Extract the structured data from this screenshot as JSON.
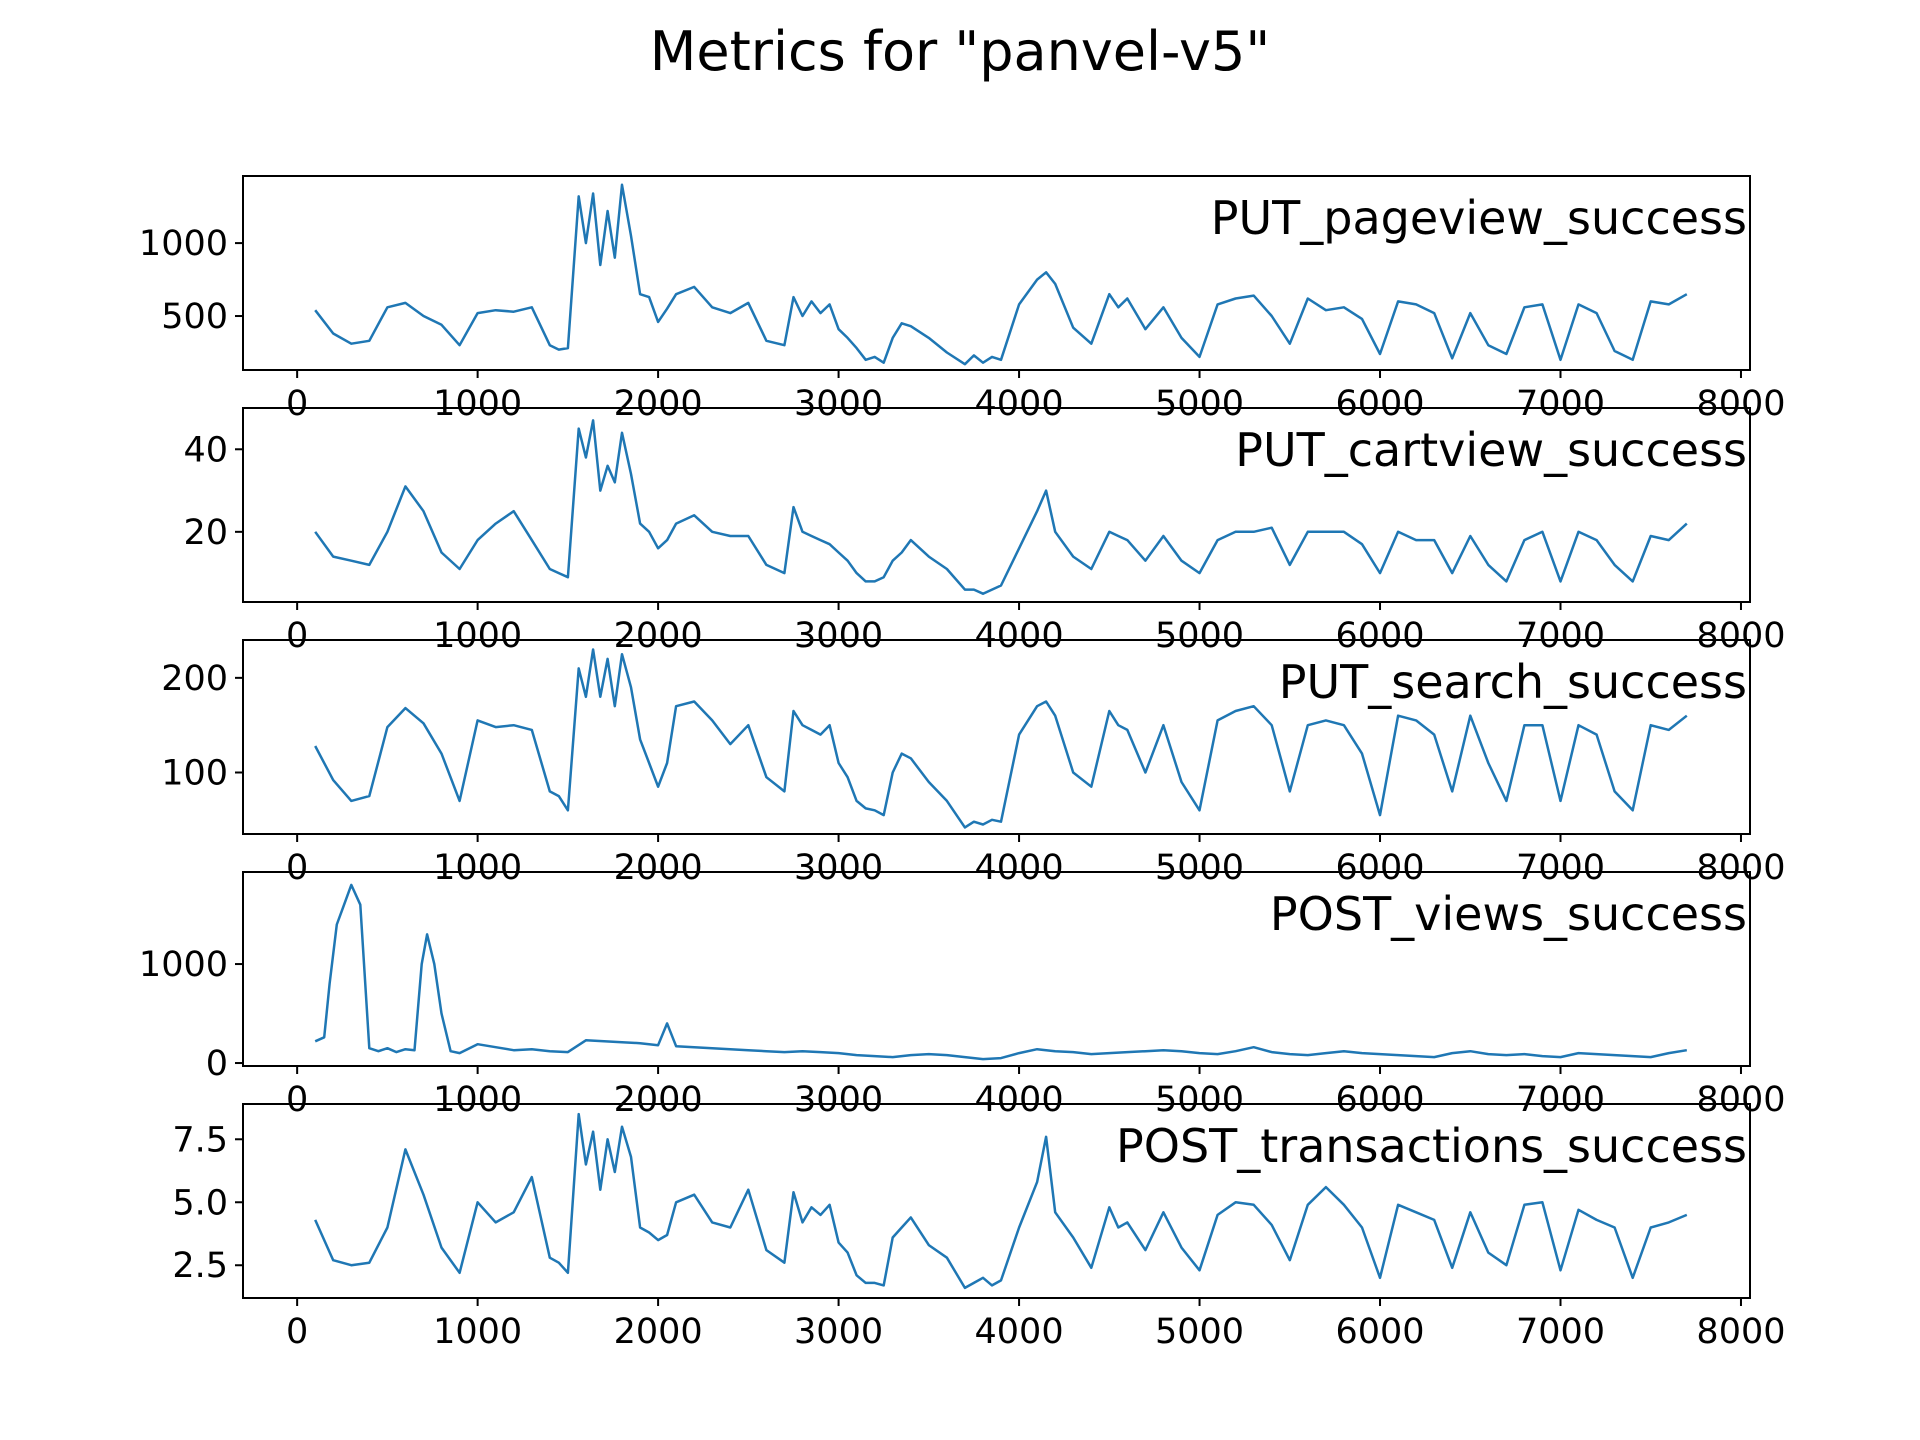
{
  "title": "Metrics for \"panvel-v5\"",
  "line_color": "#1f77b4",
  "chart_data": [
    {
      "type": "line",
      "title": "PUT_pageview_success",
      "xlim": [
        -300,
        8050
      ],
      "ylim": [
        130,
        1460
      ],
      "xticks": [
        0,
        1000,
        2000,
        3000,
        4000,
        5000,
        6000,
        7000,
        8000
      ],
      "yticks": [
        500,
        1000
      ],
      "grid": false,
      "legend": "none",
      "x": [
        100,
        200,
        300,
        400,
        500,
        600,
        700,
        800,
        900,
        1000,
        1100,
        1200,
        1300,
        1400,
        1450,
        1500,
        1560,
        1600,
        1640,
        1680,
        1720,
        1760,
        1800,
        1850,
        1900,
        1950,
        2000,
        2050,
        2100,
        2200,
        2300,
        2400,
        2500,
        2600,
        2700,
        2750,
        2800,
        2850,
        2900,
        2950,
        3000,
        3050,
        3100,
        3150,
        3200,
        3250,
        3300,
        3350,
        3400,
        3500,
        3600,
        3700,
        3750,
        3800,
        3850,
        3900,
        4000,
        4100,
        4150,
        4200,
        4300,
        4400,
        4500,
        4550,
        4600,
        4700,
        4800,
        4900,
        5000,
        5100,
        5200,
        5300,
        5400,
        5500,
        5600,
        5700,
        5800,
        5900,
        6000,
        6100,
        6200,
        6300,
        6400,
        6500,
        6600,
        6700,
        6800,
        6900,
        7000,
        7100,
        7200,
        7300,
        7400,
        7500,
        7600,
        7700
      ],
      "y": [
        540,
        380,
        310,
        330,
        560,
        590,
        500,
        440,
        300,
        520,
        540,
        530,
        560,
        300,
        270,
        280,
        1320,
        1000,
        1340,
        850,
        1220,
        900,
        1400,
        1050,
        650,
        630,
        460,
        550,
        650,
        700,
        560,
        520,
        590,
        330,
        300,
        630,
        500,
        600,
        520,
        580,
        410,
        350,
        280,
        200,
        220,
        180,
        350,
        450,
        430,
        350,
        250,
        170,
        230,
        180,
        220,
        200,
        580,
        750,
        800,
        720,
        420,
        310,
        650,
        560,
        620,
        410,
        560,
        350,
        220,
        580,
        620,
        640,
        500,
        310,
        620,
        540,
        560,
        480,
        240,
        600,
        580,
        520,
        210,
        520,
        300,
        240,
        560,
        580,
        200,
        580,
        520,
        260,
        200,
        600,
        580,
        650
      ]
    },
    {
      "type": "line",
      "title": "PUT_cartview_success",
      "xlim": [
        -300,
        8050
      ],
      "ylim": [
        3,
        50
      ],
      "xticks": [
        0,
        1000,
        2000,
        3000,
        4000,
        5000,
        6000,
        7000,
        8000
      ],
      "yticks": [
        20,
        40
      ],
      "grid": false,
      "legend": "none",
      "x": [
        100,
        200,
        300,
        400,
        500,
        600,
        700,
        800,
        900,
        1000,
        1100,
        1200,
        1300,
        1400,
        1450,
        1500,
        1560,
        1600,
        1640,
        1680,
        1720,
        1760,
        1800,
        1850,
        1900,
        1950,
        2000,
        2050,
        2100,
        2200,
        2300,
        2400,
        2500,
        2600,
        2700,
        2750,
        2800,
        2850,
        2900,
        2950,
        3000,
        3050,
        3100,
        3150,
        3200,
        3250,
        3300,
        3350,
        3400,
        3500,
        3600,
        3700,
        3750,
        3800,
        3850,
        3900,
        4000,
        4100,
        4150,
        4200,
        4300,
        4400,
        4500,
        4550,
        4600,
        4700,
        4800,
        4900,
        5000,
        5100,
        5200,
        5300,
        5400,
        5500,
        5600,
        5700,
        5800,
        5900,
        6000,
        6100,
        6200,
        6300,
        6400,
        6500,
        6600,
        6700,
        6800,
        6900,
        7000,
        7100,
        7200,
        7300,
        7400,
        7500,
        7600,
        7700
      ],
      "y": [
        20,
        14,
        13,
        12,
        20,
        31,
        25,
        15,
        11,
        18,
        22,
        25,
        18,
        11,
        10,
        9,
        45,
        38,
        47,
        30,
        36,
        32,
        44,
        34,
        22,
        20,
        16,
        18,
        22,
        24,
        20,
        19,
        19,
        12,
        10,
        26,
        20,
        19,
        18,
        17,
        15,
        13,
        10,
        8,
        8,
        9,
        13,
        15,
        18,
        14,
        11,
        6,
        6,
        5,
        6,
        7,
        16,
        25,
        30,
        20,
        14,
        11,
        20,
        19,
        18,
        13,
        19,
        13,
        10,
        18,
        20,
        20,
        21,
        12,
        20,
        20,
        20,
        17,
        10,
        20,
        18,
        18,
        10,
        19,
        12,
        8,
        18,
        20,
        8,
        20,
        18,
        12,
        8,
        19,
        18,
        22
      ]
    },
    {
      "type": "line",
      "title": "PUT_search_success",
      "xlim": [
        -300,
        8050
      ],
      "ylim": [
        35,
        240
      ],
      "xticks": [
        0,
        1000,
        2000,
        3000,
        4000,
        5000,
        6000,
        7000,
        8000
      ],
      "yticks": [
        100,
        200
      ],
      "grid": false,
      "legend": "none",
      "x": [
        100,
        200,
        300,
        400,
        500,
        600,
        700,
        800,
        900,
        1000,
        1100,
        1200,
        1300,
        1400,
        1450,
        1500,
        1560,
        1600,
        1640,
        1680,
        1720,
        1760,
        1800,
        1850,
        1900,
        1950,
        2000,
        2050,
        2100,
        2200,
        2300,
        2400,
        2500,
        2600,
        2700,
        2750,
        2800,
        2850,
        2900,
        2950,
        3000,
        3050,
        3100,
        3150,
        3200,
        3250,
        3300,
        3350,
        3400,
        3500,
        3600,
        3700,
        3750,
        3800,
        3850,
        3900,
        4000,
        4100,
        4150,
        4200,
        4300,
        4400,
        4500,
        4550,
        4600,
        4700,
        4800,
        4900,
        5000,
        5100,
        5200,
        5300,
        5400,
        5500,
        5600,
        5700,
        5800,
        5900,
        6000,
        6100,
        6200,
        6300,
        6400,
        6500,
        6600,
        6700,
        6800,
        6900,
        7000,
        7100,
        7200,
        7300,
        7400,
        7500,
        7600,
        7700
      ],
      "y": [
        128,
        92,
        70,
        75,
        148,
        168,
        152,
        120,
        70,
        155,
        148,
        150,
        145,
        80,
        75,
        60,
        210,
        180,
        230,
        180,
        220,
        170,
        225,
        190,
        135,
        110,
        85,
        110,
        170,
        175,
        155,
        130,
        150,
        95,
        80,
        165,
        150,
        145,
        140,
        150,
        110,
        95,
        70,
        62,
        60,
        55,
        100,
        120,
        115,
        90,
        70,
        42,
        48,
        45,
        50,
        48,
        140,
        170,
        175,
        160,
        100,
        85,
        165,
        150,
        145,
        100,
        150,
        90,
        60,
        155,
        165,
        170,
        150,
        80,
        150,
        155,
        150,
        120,
        55,
        160,
        155,
        140,
        80,
        160,
        110,
        70,
        150,
        150,
        70,
        150,
        140,
        80,
        60,
        150,
        145,
        160
      ]
    },
    {
      "type": "line",
      "title": "POST_views_success",
      "xlim": [
        -300,
        8050
      ],
      "ylim": [
        -30,
        1930
      ],
      "xticks": [
        0,
        1000,
        2000,
        3000,
        4000,
        5000,
        6000,
        7000,
        8000
      ],
      "yticks": [
        0,
        1000
      ],
      "grid": false,
      "legend": "none",
      "x": [
        100,
        150,
        180,
        220,
        250,
        300,
        350,
        400,
        450,
        500,
        550,
        600,
        650,
        690,
        720,
        760,
        800,
        850,
        900,
        1000,
        1100,
        1200,
        1300,
        1400,
        1500,
        1600,
        1700,
        1800,
        1900,
        2000,
        2050,
        2100,
        2200,
        2300,
        2400,
        2500,
        2600,
        2700,
        2800,
        2900,
        3000,
        3100,
        3200,
        3300,
        3400,
        3500,
        3600,
        3700,
        3800,
        3900,
        4000,
        4100,
        4200,
        4300,
        4400,
        4500,
        4600,
        4700,
        4800,
        4900,
        5000,
        5100,
        5200,
        5300,
        5400,
        5500,
        5600,
        5700,
        5800,
        5900,
        6000,
        6100,
        6200,
        6300,
        6400,
        6500,
        6600,
        6700,
        6800,
        6900,
        7000,
        7100,
        7200,
        7300,
        7400,
        7500,
        7600,
        7700
      ],
      "y": [
        220,
        260,
        800,
        1400,
        1550,
        1800,
        1600,
        150,
        120,
        150,
        110,
        140,
        130,
        1000,
        1300,
        1000,
        500,
        120,
        100,
        190,
        160,
        130,
        140,
        120,
        110,
        230,
        220,
        210,
        200,
        180,
        400,
        170,
        160,
        150,
        140,
        130,
        120,
        110,
        120,
        110,
        100,
        80,
        70,
        60,
        80,
        90,
        80,
        60,
        40,
        50,
        100,
        140,
        120,
        110,
        90,
        100,
        110,
        120,
        130,
        120,
        100,
        90,
        120,
        160,
        110,
        90,
        80,
        100,
        120,
        100,
        90,
        80,
        70,
        60,
        100,
        120,
        90,
        80,
        90,
        70,
        60,
        100,
        90,
        80,
        70,
        60,
        100,
        130
      ]
    },
    {
      "type": "line",
      "title": "POST_transactions_success",
      "xlim": [
        -300,
        8050
      ],
      "ylim": [
        1.2,
        8.9
      ],
      "xticks": [
        0,
        1000,
        2000,
        3000,
        4000,
        5000,
        6000,
        7000,
        8000
      ],
      "yticks": [
        2.5,
        5.0,
        7.5
      ],
      "grid": false,
      "legend": "none",
      "x": [
        100,
        200,
        300,
        400,
        500,
        600,
        700,
        800,
        900,
        1000,
        1100,
        1200,
        1300,
        1400,
        1450,
        1500,
        1560,
        1600,
        1640,
        1680,
        1720,
        1760,
        1800,
        1850,
        1900,
        1950,
        2000,
        2050,
        2100,
        2200,
        2300,
        2400,
        2500,
        2600,
        2700,
        2750,
        2800,
        2850,
        2900,
        2950,
        3000,
        3050,
        3100,
        3150,
        3200,
        3250,
        3300,
        3350,
        3400,
        3500,
        3600,
        3700,
        3750,
        3800,
        3850,
        3900,
        4000,
        4100,
        4150,
        4200,
        4300,
        4400,
        4500,
        4550,
        4600,
        4700,
        4800,
        4900,
        5000,
        5100,
        5200,
        5300,
        5400,
        5500,
        5600,
        5700,
        5800,
        5900,
        6000,
        6100,
        6200,
        6300,
        6400,
        6500,
        6600,
        6700,
        6800,
        6900,
        7000,
        7100,
        7200,
        7300,
        7400,
        7500,
        7600,
        7700
      ],
      "y": [
        4.3,
        2.7,
        2.5,
        2.6,
        4.0,
        7.1,
        5.3,
        3.2,
        2.2,
        5.0,
        4.2,
        4.6,
        6.0,
        2.8,
        2.6,
        2.2,
        8.5,
        6.5,
        7.8,
        5.5,
        7.5,
        6.2,
        8.0,
        6.8,
        4.0,
        3.8,
        3.5,
        3.7,
        5.0,
        5.3,
        4.2,
        4.0,
        5.5,
        3.1,
        2.6,
        5.4,
        4.2,
        4.8,
        4.5,
        4.9,
        3.4,
        3.0,
        2.1,
        1.8,
        1.8,
        1.7,
        3.6,
        4.0,
        4.4,
        3.3,
        2.8,
        1.6,
        1.8,
        2.0,
        1.7,
        1.9,
        4.0,
        5.8,
        7.6,
        4.6,
        3.6,
        2.4,
        4.8,
        4.0,
        4.2,
        3.1,
        4.6,
        3.2,
        2.3,
        4.5,
        5.0,
        4.9,
        4.1,
        2.7,
        4.9,
        5.6,
        4.9,
        4.0,
        2.0,
        4.9,
        4.6,
        4.3,
        2.4,
        4.6,
        3.0,
        2.5,
        4.9,
        5.0,
        2.3,
        4.7,
        4.3,
        4.0,
        2.0,
        4.0,
        4.2,
        4.5
      ]
    }
  ]
}
